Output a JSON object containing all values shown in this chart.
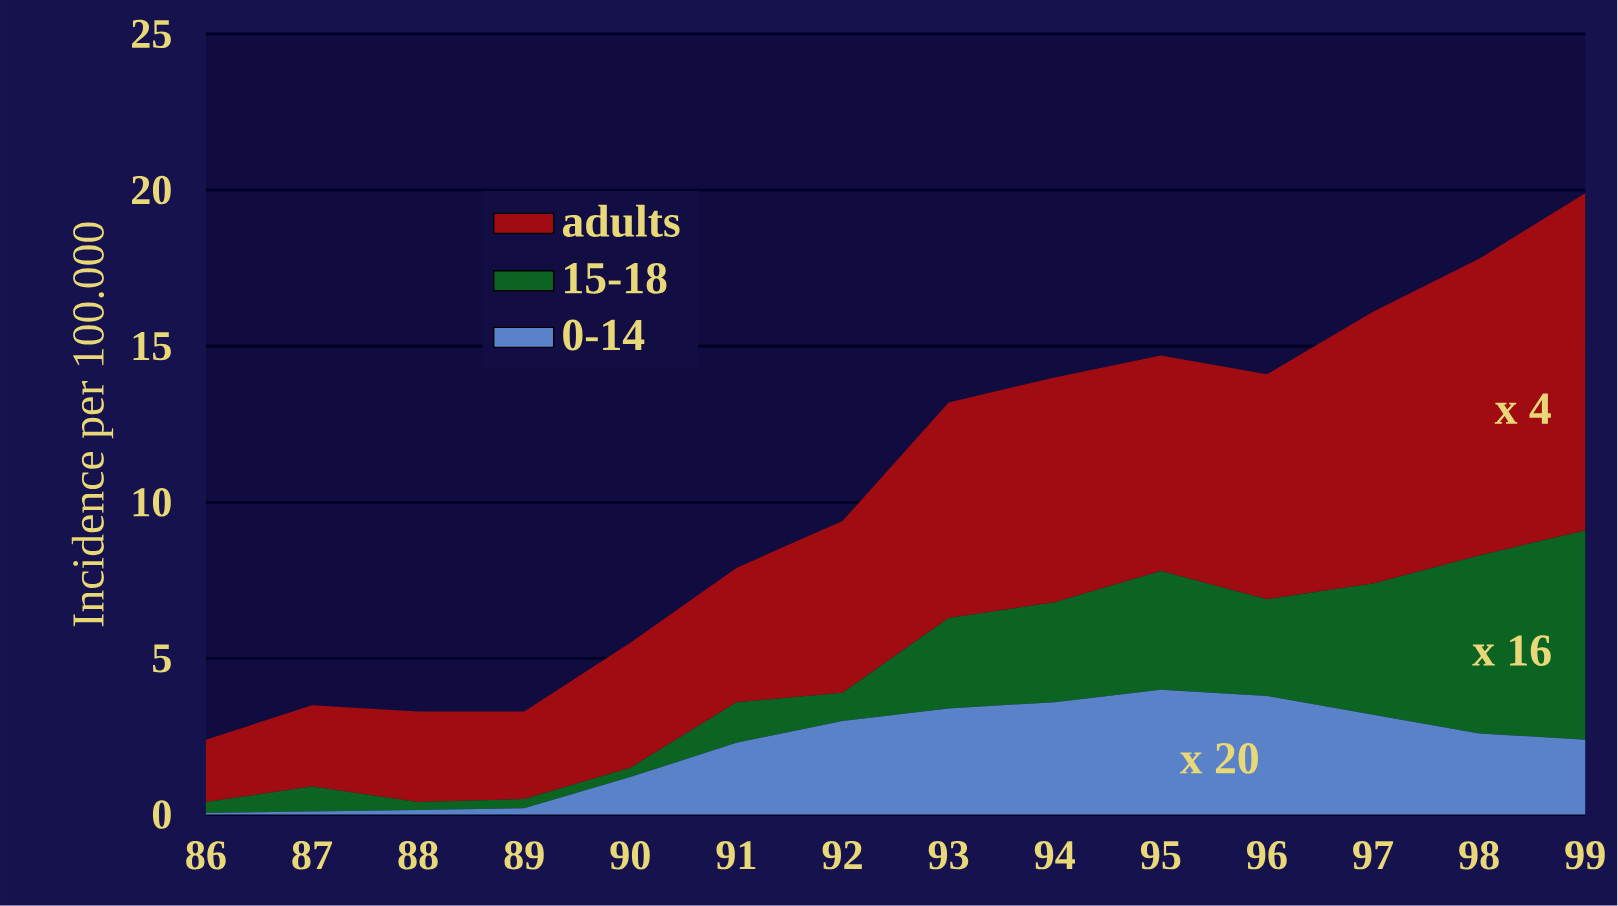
{
  "chart_data": {
    "type": "area",
    "stacked": true,
    "ylabel": "Incidence per 100.000",
    "x": [
      86,
      87,
      88,
      89,
      90,
      91,
      92,
      93,
      94,
      95,
      96,
      97,
      98,
      99
    ],
    "series": [
      {
        "name": "0-14",
        "color": "#5a82c8",
        "values": [
          0.05,
          0.1,
          0.15,
          0.2,
          1.2,
          2.3,
          3.0,
          3.4,
          3.6,
          4.0,
          3.8,
          3.2,
          2.6,
          2.4
        ]
      },
      {
        "name": "15-18",
        "color": "#0c6422",
        "values": [
          0.35,
          0.8,
          0.25,
          0.3,
          0.3,
          1.3,
          0.9,
          2.9,
          3.2,
          3.8,
          3.1,
          4.2,
          5.7,
          6.7
        ]
      },
      {
        "name": "adults",
        "color": "#a00c12",
        "values": [
          2.0,
          2.6,
          2.9,
          2.8,
          4.0,
          4.3,
          5.5,
          6.9,
          7.2,
          6.9,
          7.2,
          8.7,
          9.5,
          10.8
        ]
      }
    ],
    "xlim": [
      86,
      99
    ],
    "xticks": [
      86,
      87,
      88,
      89,
      90,
      91,
      92,
      93,
      94,
      95,
      96,
      97,
      98,
      99
    ],
    "ylim": [
      0,
      25
    ],
    "yticks": [
      0,
      5,
      10,
      15,
      20,
      25
    ],
    "grid": "y",
    "legend": "top left",
    "annotations": [
      "x 4",
      "x 16",
      "x 20"
    ]
  }
}
